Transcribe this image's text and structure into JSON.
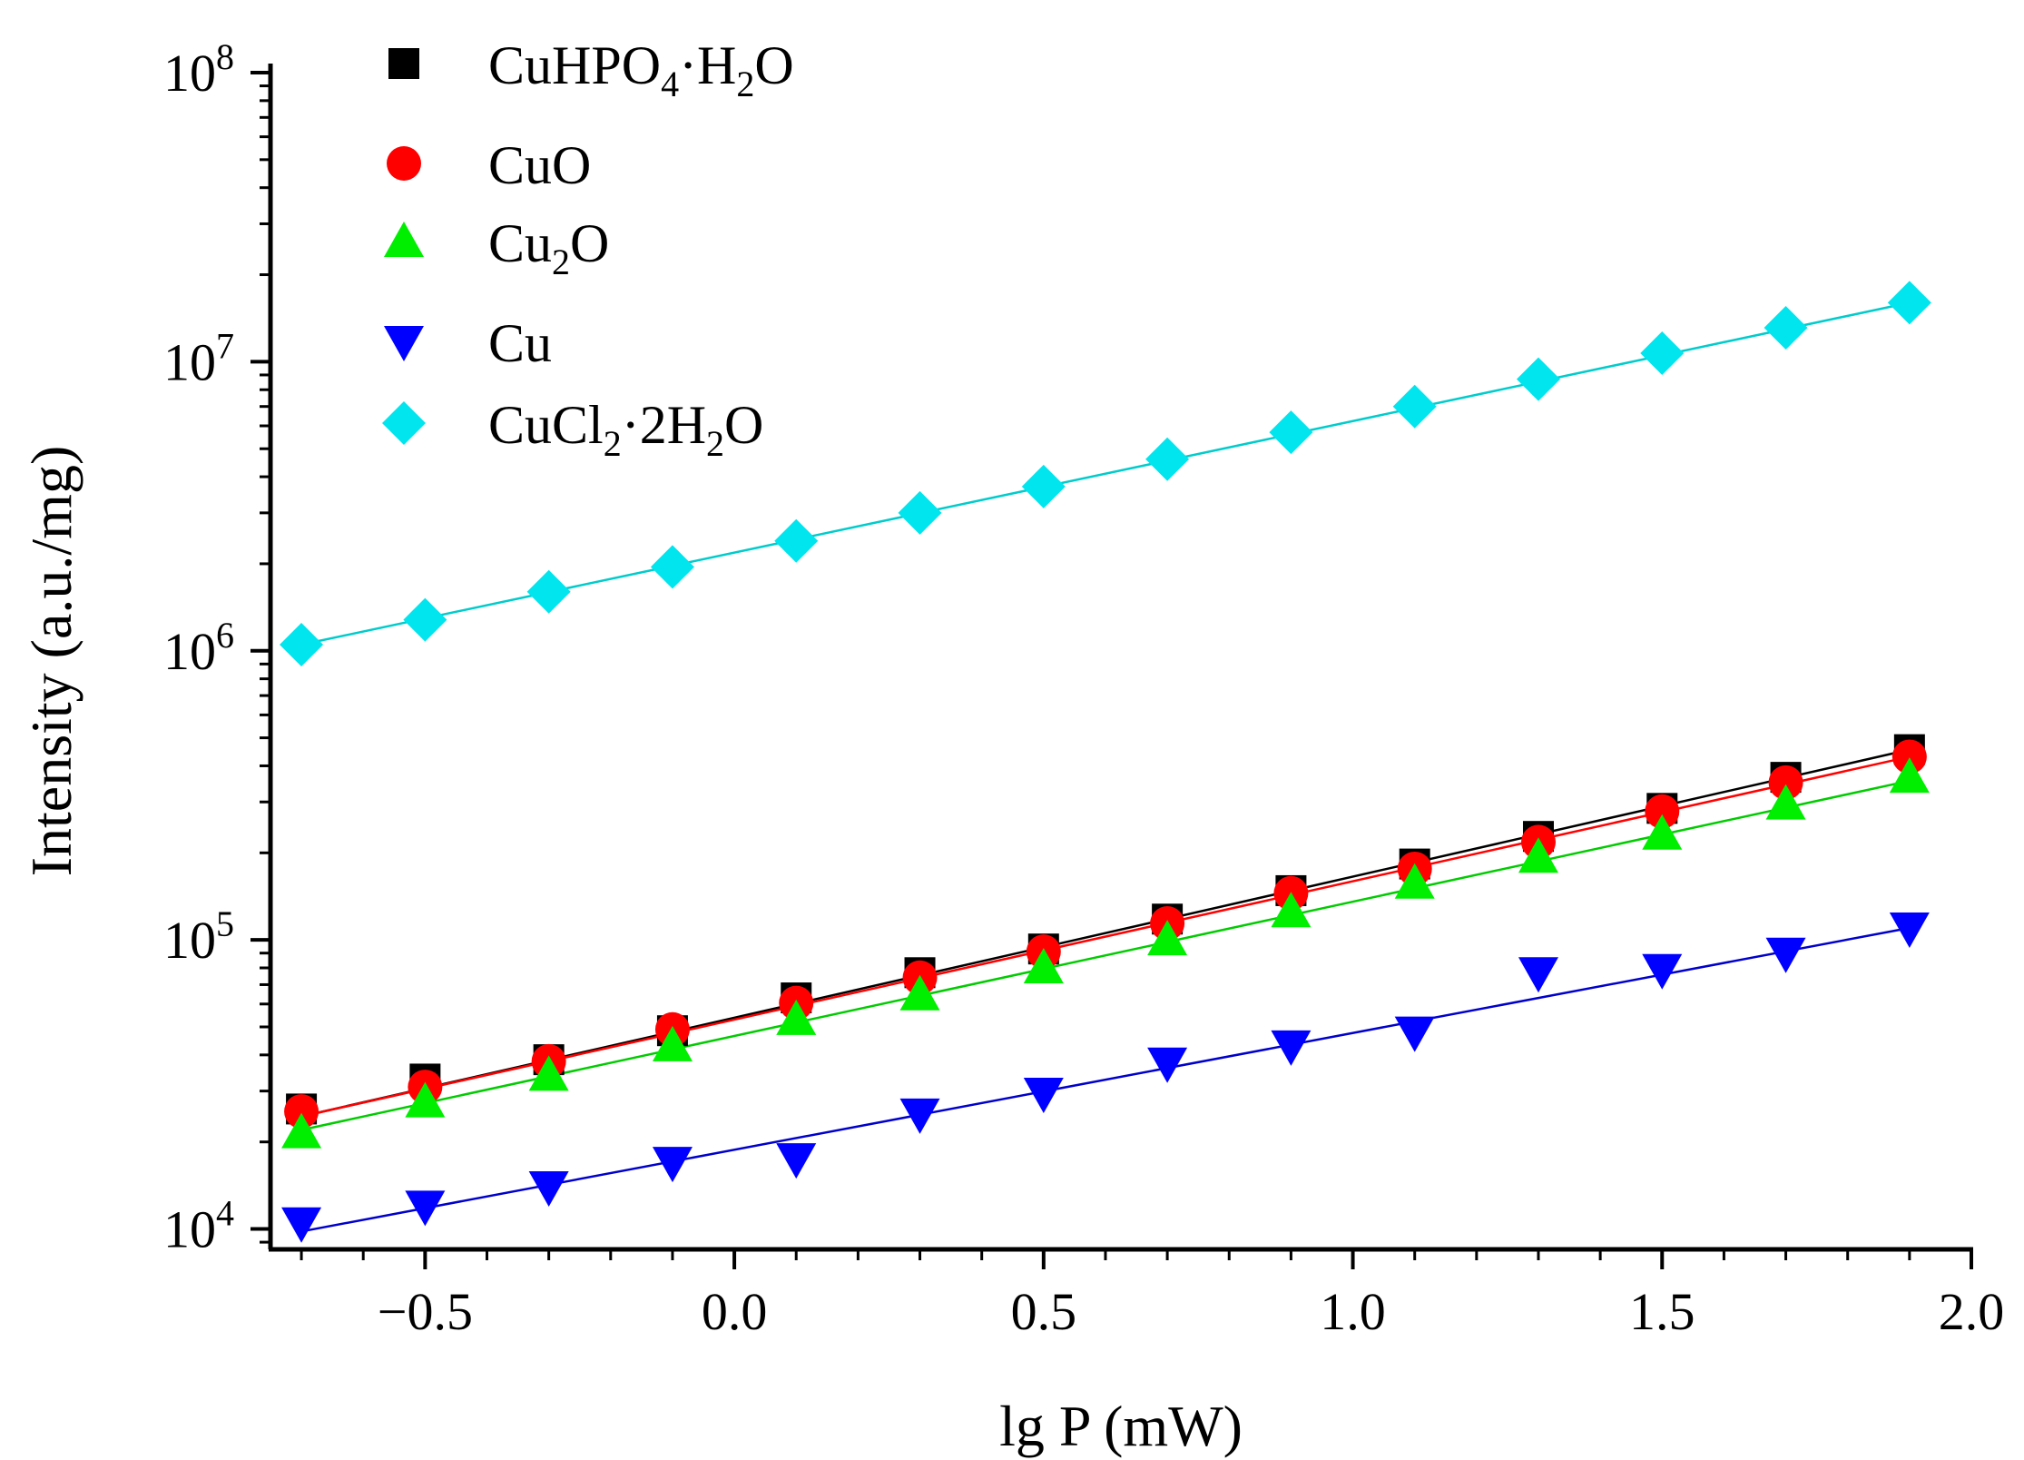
{
  "chart_data": {
    "type": "scatter",
    "title": "",
    "xlabel": "lg P (mW)",
    "ylabel": "Intensity (a.u./mg)",
    "xlim": [
      -0.75,
      2.0
    ],
    "ylim": [
      8500,
      100000000
    ],
    "yscale": "log",
    "x_ticks": [
      -0.5,
      0.0,
      0.5,
      1.0,
      1.5,
      2.0
    ],
    "x_tick_labels": [
      "−0.5",
      "0.0",
      "0.5",
      "1.0",
      "1.5",
      "2.0"
    ],
    "y_ticks": [
      10000,
      100000,
      1000000,
      10000000,
      100000000
    ],
    "y_tick_labels": [
      {
        "base": "10",
        "exp": "4"
      },
      {
        "base": "10",
        "exp": "5"
      },
      {
        "base": "10",
        "exp": "6"
      },
      {
        "base": "10",
        "exp": "7"
      },
      {
        "base": "10",
        "exp": "8"
      }
    ],
    "legend_position": "top-left",
    "x": [
      -0.7,
      -0.5,
      -0.3,
      -0.1,
      0.1,
      0.3,
      0.5,
      0.7,
      0.9,
      1.1,
      1.3,
      1.5,
      1.7,
      1.9
    ],
    "series": [
      {
        "name": "CuHPO4·H2O",
        "label_parts": [
          {
            "t": "CuHPO",
            "s": ""
          },
          {
            "t": "4",
            "s": "sub"
          },
          {
            "t": "·H",
            "s": ""
          },
          {
            "t": "2",
            "s": "sub"
          },
          {
            "t": "O",
            "s": ""
          }
        ],
        "marker": "square",
        "color": "#000000",
        "line_color": "#000000",
        "values": [
          26000,
          33000,
          38500,
          48500,
          63000,
          77000,
          93000,
          118000,
          148000,
          183000,
          228000,
          285000,
          365000,
          455000
        ],
        "fit": [
          24500,
          455000
        ]
      },
      {
        "name": "CuO",
        "label_parts": [
          {
            "t": "CuO",
            "s": ""
          }
        ],
        "marker": "circle",
        "color": "#ff0000",
        "line_color": "#ff0000",
        "values": [
          25500,
          31000,
          38000,
          49000,
          60500,
          74000,
          91000,
          114000,
          145000,
          176000,
          218000,
          278000,
          350000,
          430000
        ],
        "fit": [
          24500,
          430000
        ]
      },
      {
        "name": "Cu2O",
        "label_parts": [
          {
            "t": "Cu",
            "s": ""
          },
          {
            "t": "2",
            "s": "sub"
          },
          {
            "t": "O",
            "s": ""
          }
        ],
        "marker": "triangle-up",
        "color": "#00ee00",
        "line_color": "#00cc00",
        "values": [
          21500,
          27500,
          34000,
          43000,
          53000,
          64500,
          80000,
          100000,
          125000,
          157000,
          193000,
          232000,
          295000,
          365000
        ],
        "fit": [
          22000,
          355000
        ]
      },
      {
        "name": "Cu",
        "label_parts": [
          {
            "t": "Cu",
            "s": ""
          }
        ],
        "marker": "triangle-down",
        "color": "#0000ff",
        "line_color": "#0000cc",
        "values": [
          10500,
          12000,
          14000,
          17000,
          17500,
          25000,
          29500,
          37500,
          43000,
          48000,
          77000,
          79000,
          90000,
          110000
        ],
        "fit": [
          9800,
          110000
        ]
      },
      {
        "name": "CuCl2·2H2O",
        "label_parts": [
          {
            "t": "CuCl",
            "s": ""
          },
          {
            "t": "2",
            "s": "sub"
          },
          {
            "t": "·2H",
            "s": ""
          },
          {
            "t": "2",
            "s": "sub"
          },
          {
            "t": "O",
            "s": ""
          }
        ],
        "marker": "diamond",
        "color": "#00e5ee",
        "line_color": "#00cccc",
        "values": [
          1050000,
          1280000,
          1600000,
          1950000,
          2400000,
          3000000,
          3700000,
          4600000,
          5700000,
          7000000,
          8700000,
          10700000,
          13100000,
          16000000
        ],
        "fit": [
          1050000,
          16000000
        ]
      }
    ]
  }
}
